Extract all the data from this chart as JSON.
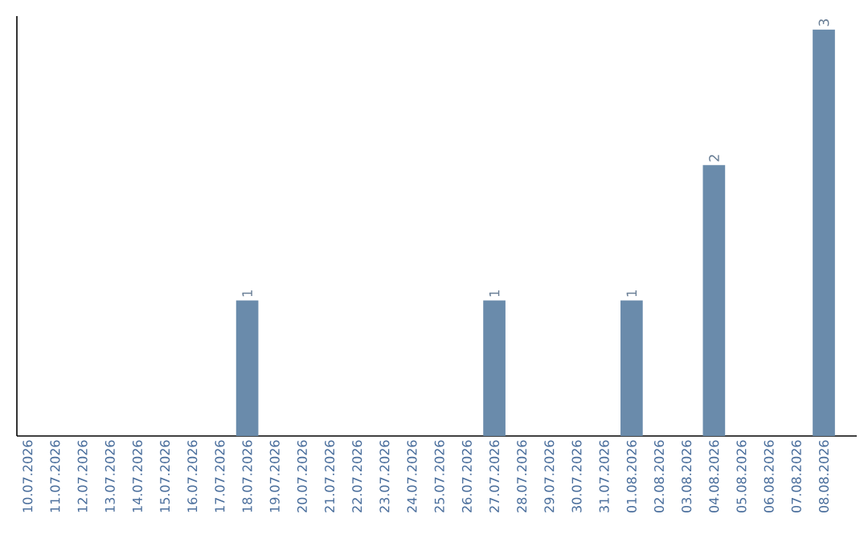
{
  "chart_data": {
    "type": "bar",
    "categories": [
      "10.07.2026",
      "11.07.2026",
      "12.07.2026",
      "13.07.2026",
      "14.07.2026",
      "15.07.2026",
      "16.07.2026",
      "17.07.2026",
      "18.07.2026",
      "19.07.2026",
      "20.07.2026",
      "21.07.2026",
      "22.07.2026",
      "23.07.2026",
      "24.07.2026",
      "25.07.2026",
      "26.07.2026",
      "27.07.2026",
      "28.07.2026",
      "29.07.2026",
      "30.07.2026",
      "31.07.2026",
      "01.08.2026",
      "02.08.2026",
      "03.08.2026",
      "04.08.2026",
      "05.08.2026",
      "06.08.2026",
      "07.08.2026",
      "08.08.2026"
    ],
    "values": [
      0,
      0,
      0,
      0,
      0,
      0,
      0,
      0,
      1,
      0,
      0,
      0,
      0,
      0,
      0,
      0,
      0,
      1,
      0,
      0,
      0,
      0,
      1,
      0,
      0,
      2,
      0,
      0,
      0,
      3
    ],
    "value_labels": [
      null,
      null,
      null,
      null,
      null,
      null,
      null,
      null,
      "1",
      null,
      null,
      null,
      null,
      null,
      null,
      null,
      null,
      "1",
      null,
      null,
      null,
      null,
      "1",
      null,
      null,
      "2",
      null,
      null,
      null,
      "3"
    ],
    "color": "#6a8bab",
    "ylim": [
      0,
      3.1
    ],
    "tick_labels": "x",
    "grid": false
  }
}
